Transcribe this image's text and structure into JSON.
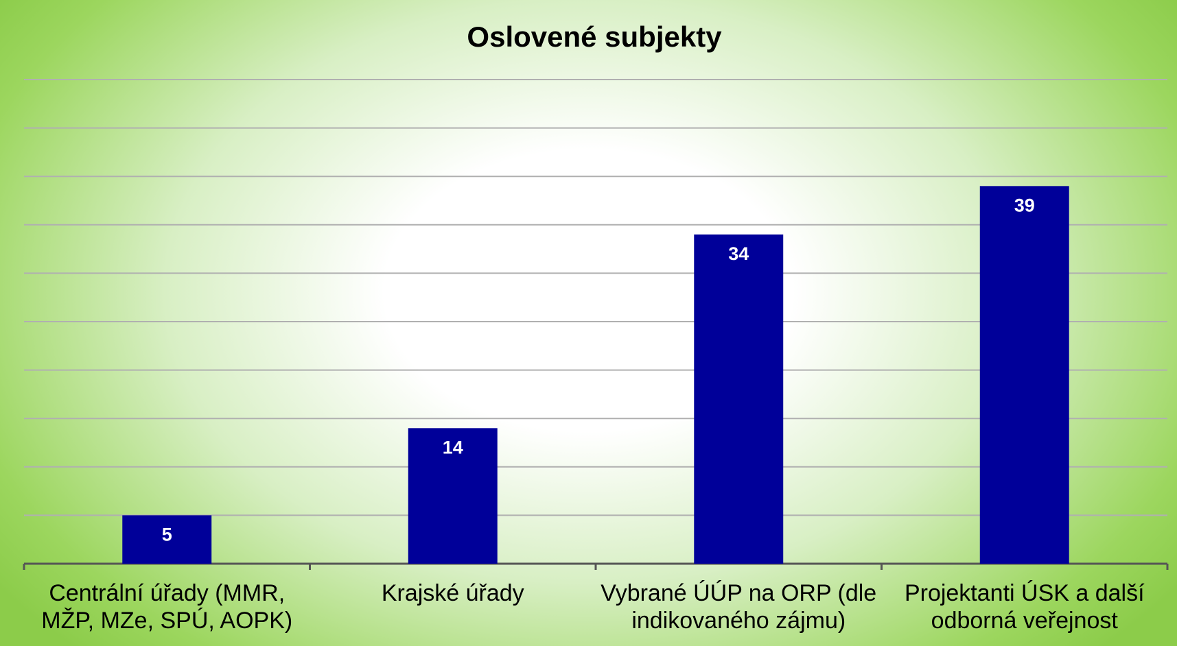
{
  "chart_data": {
    "type": "bar",
    "title": "Oslovené subjekty",
    "categories": [
      "Centrální úřady (MMR, MŽP, MZe, SPÚ, AOPK)",
      "Krajské úřady",
      "Vybrané ÚÚP na ORP (dle indikovaného zájmu)",
      "Projektanti ÚSK a další odborná veřejnost"
    ],
    "values": [
      5,
      14,
      34,
      39
    ],
    "color": "#000099",
    "ylim": [
      0,
      50
    ],
    "yticks": [
      0,
      5,
      10,
      15,
      20,
      25,
      30,
      35,
      40,
      45,
      50
    ],
    "grid": true
  }
}
